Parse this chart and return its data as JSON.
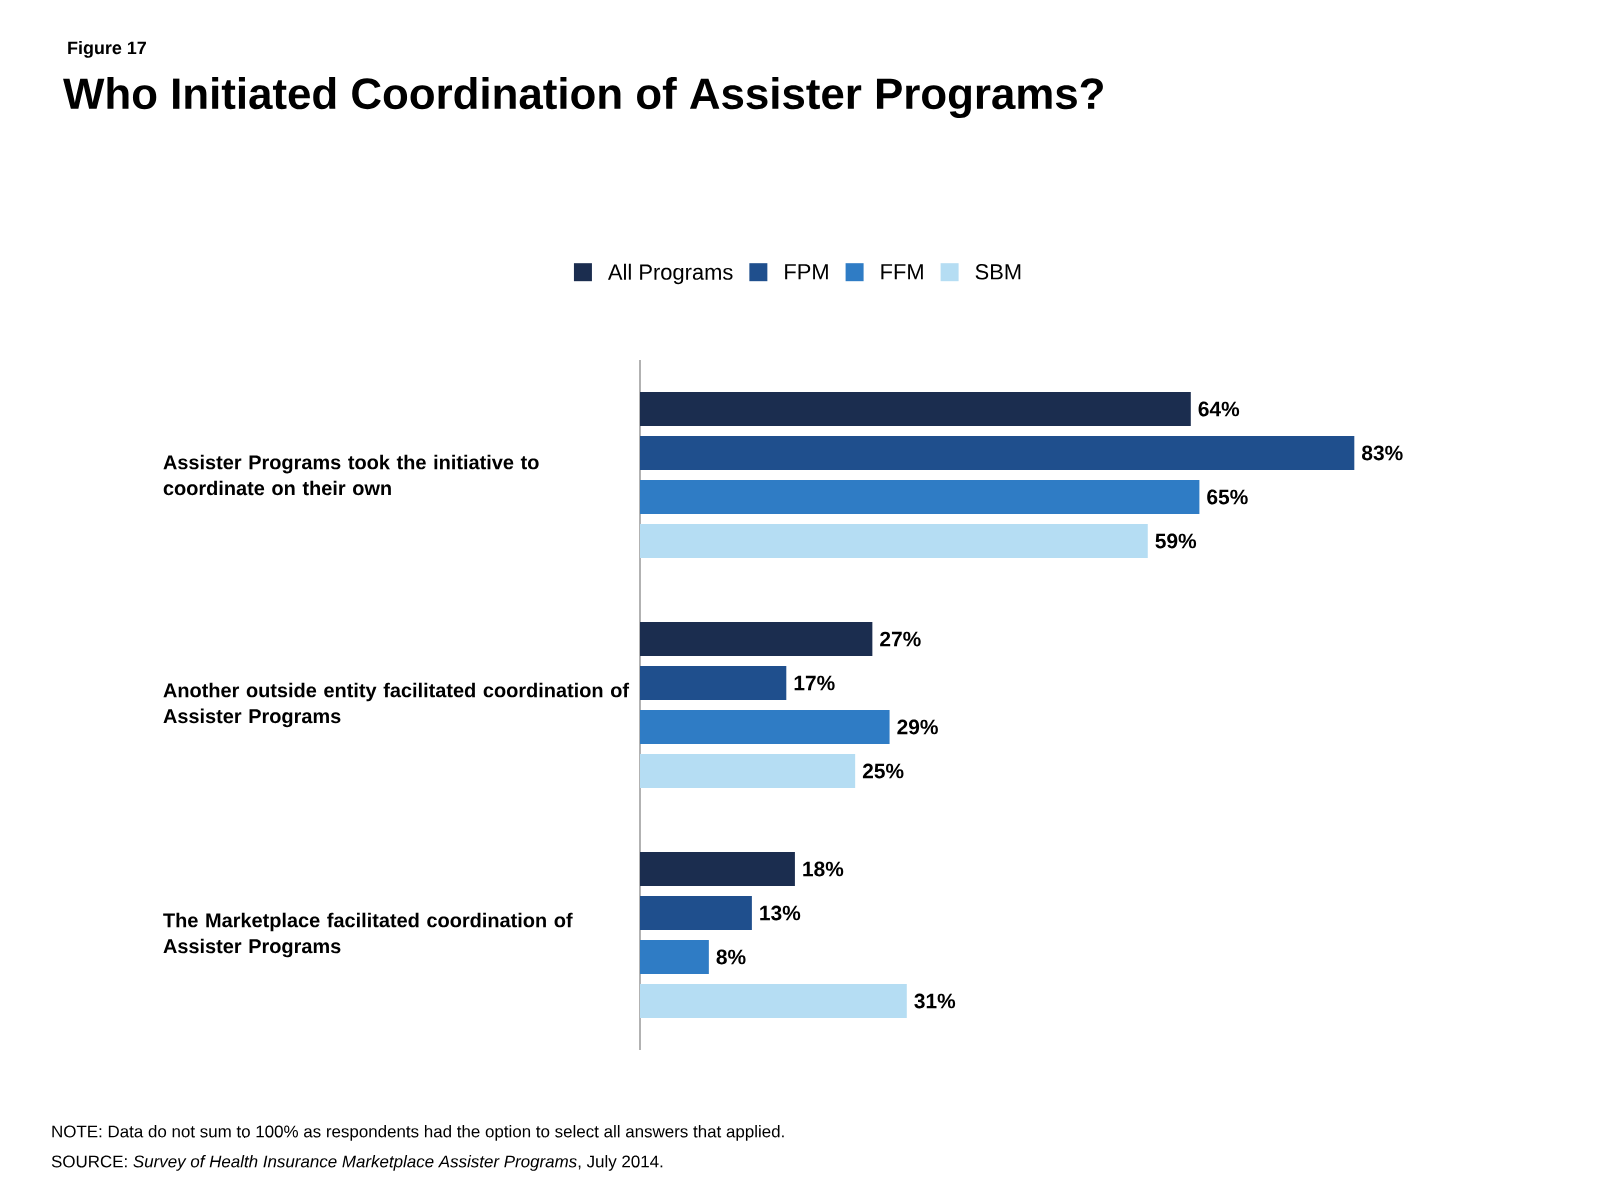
{
  "chart_data": {
    "type": "bar",
    "orientation": "horizontal",
    "title": "Who Initiated Coordination of Assister Programs?",
    "subtitle": "Figure 17",
    "categories": [
      "Assister Programs took the initiative to coordinate on their own",
      "Another outside entity facilitated coordination of Assister Programs",
      "The Marketplace facilitated coordination of Assister Programs"
    ],
    "series": [
      {
        "name": "All Programs",
        "color": "#1b2d4f",
        "values": [
          64,
          27,
          18
        ],
        "value_labels": [
          "64%",
          "27%",
          "18%"
        ]
      },
      {
        "name": "FPM",
        "color": "#1f4f8d",
        "values": [
          83,
          17,
          13
        ],
        "value_labels": [
          "83%",
          "17%",
          "13%"
        ]
      },
      {
        "name": "FFM",
        "color": "#2f7cc5",
        "values": [
          65,
          29,
          8
        ],
        "value_labels": [
          "65%",
          "29%",
          "8%"
        ]
      },
      {
        "name": "SBM",
        "color": "#b5ddf3",
        "values": [
          59,
          25,
          31
        ],
        "value_labels": [
          "59%",
          "25%",
          "31%"
        ]
      }
    ],
    "legend": "top",
    "annotations": [
      "NOTE: Data do not sum to 100% as respondents had the option to select all answers that applied.",
      "SOURCE: *Survey of Health Insurance Marketplace Assister Programs*, July 2014."
    ]
  }
}
